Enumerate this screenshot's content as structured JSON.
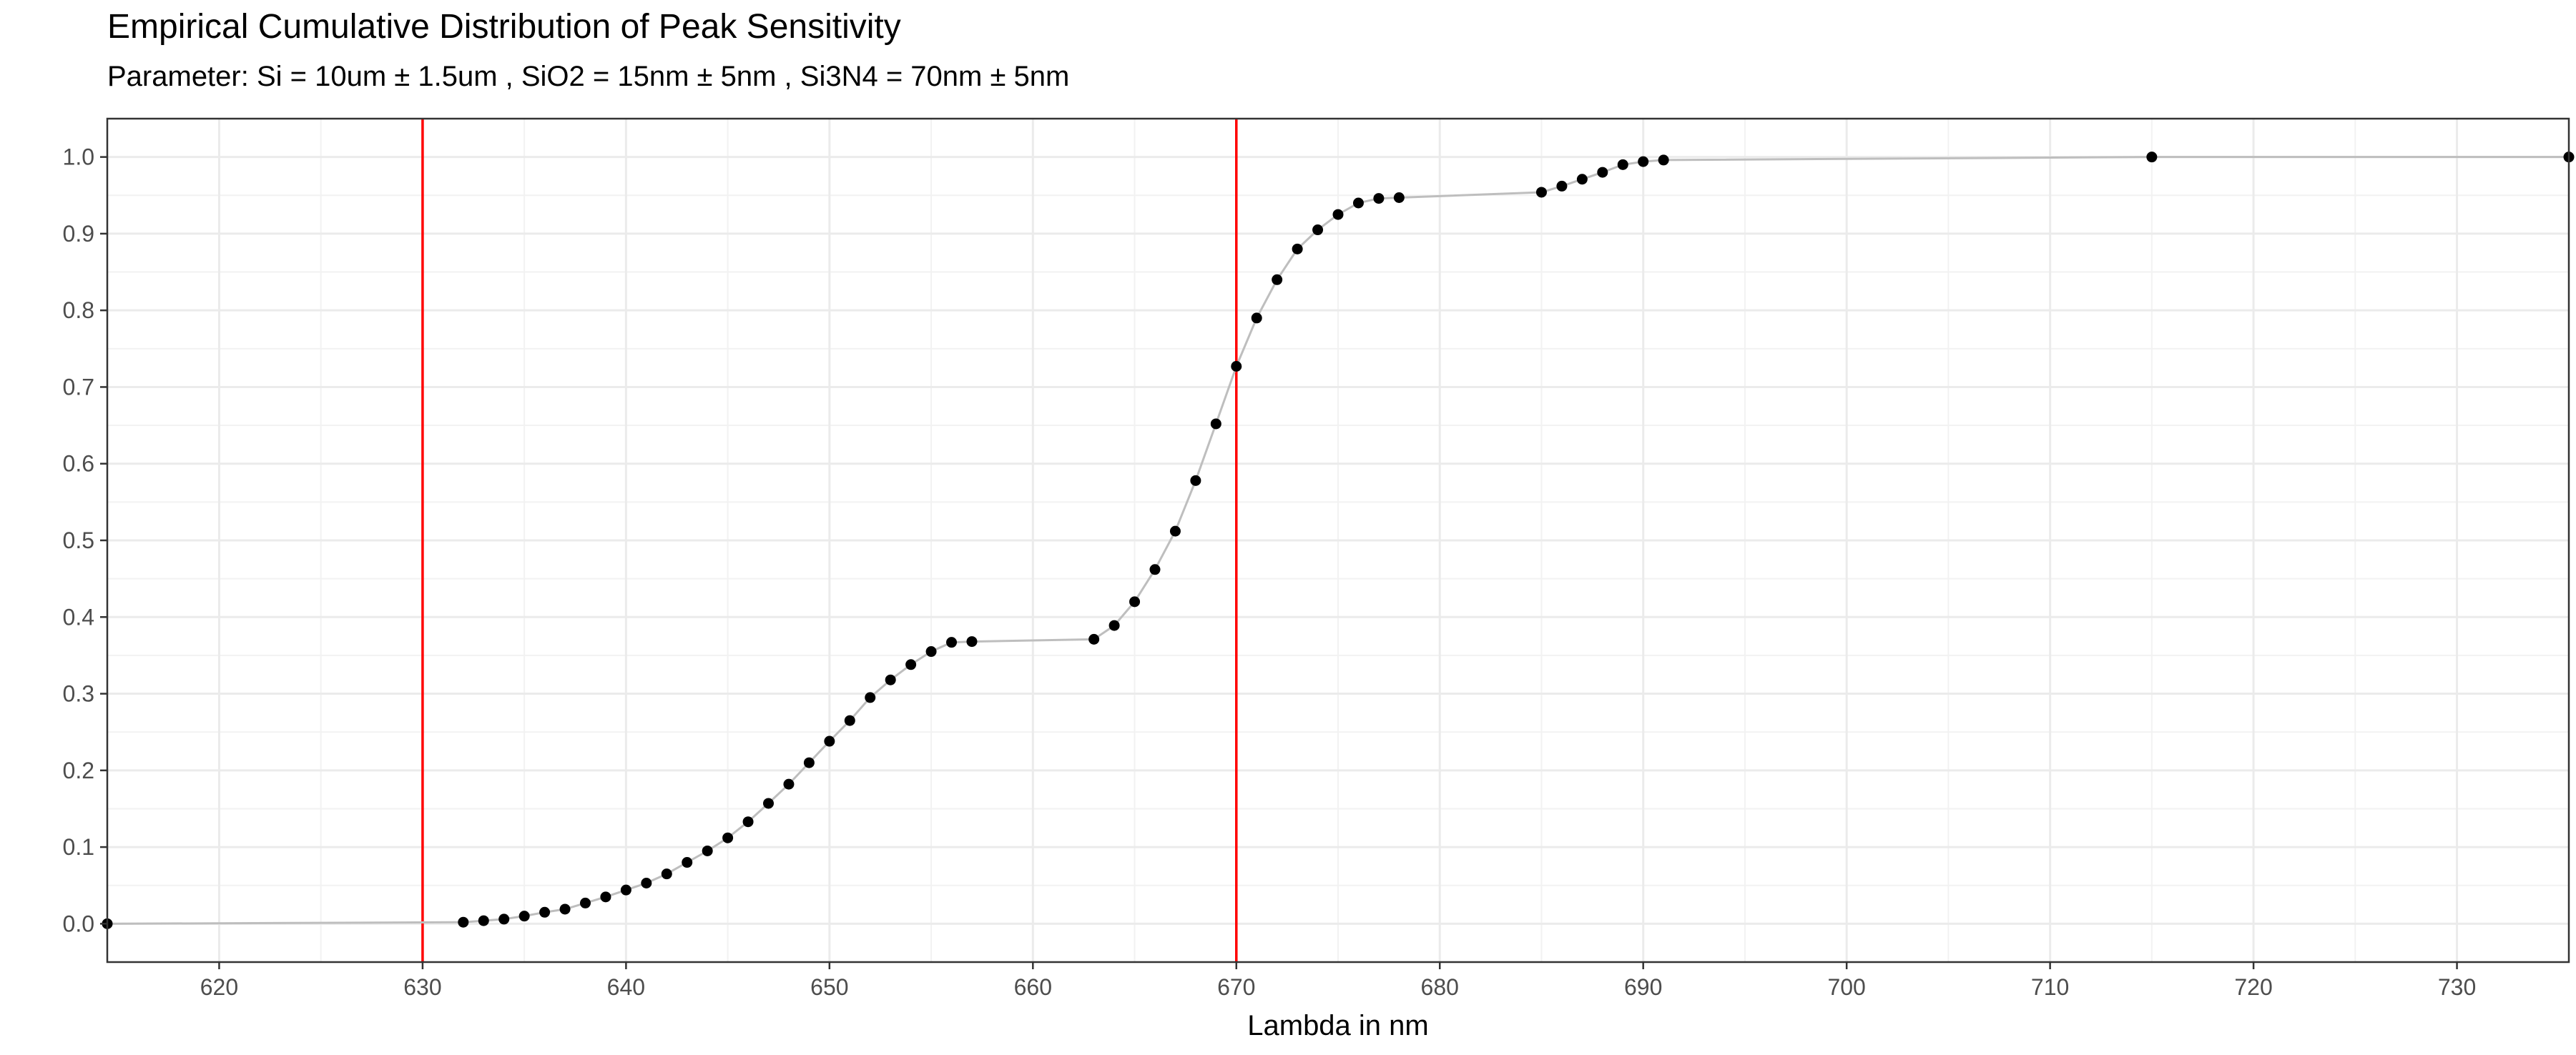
{
  "chart_data": {
    "type": "scatter",
    "title": "Empirical Cumulative Distribution of Peak Sensitivity",
    "subtitle": "Parameter: Si =  10um ± 1.5um ,  SiO2 =  15nm ± 5nm ,  Si3N4 =  70nm ± 5nm",
    "xlabel": "Lambda in nm",
    "ylabel": "",
    "xlim": [
      614.5,
      735.5
    ],
    "ylim": [
      -0.05,
      1.05
    ],
    "x_ticks": [
      620,
      630,
      640,
      650,
      660,
      670,
      680,
      690,
      700,
      710,
      720,
      730
    ],
    "y_ticks": [
      0.0,
      0.1,
      0.2,
      0.3,
      0.4,
      0.5,
      0.6,
      0.7,
      0.8,
      0.9,
      1.0
    ],
    "x_tick_labels": [
      "620",
      "630",
      "640",
      "650",
      "660",
      "670",
      "680",
      "690",
      "700",
      "710",
      "720",
      "730"
    ],
    "y_tick_labels": [
      "0.0",
      "0.1",
      "0.2",
      "0.3",
      "0.4",
      "0.5",
      "0.6",
      "0.7",
      "0.8",
      "0.9",
      "1.0"
    ],
    "grid": true,
    "vlines": [
      {
        "x": 630,
        "color": "#ff0000"
      },
      {
        "x": 670,
        "color": "#ff0000"
      }
    ],
    "line_color": "#bebebe",
    "point_color": "#000000",
    "series": [
      {
        "x": [
          614.5,
          632,
          633,
          634,
          635,
          636,
          637,
          638,
          639,
          640,
          641,
          642,
          643,
          644,
          645,
          646,
          647,
          648,
          649,
          650,
          651,
          652,
          653,
          654,
          655,
          656,
          657,
          663,
          664,
          665,
          666,
          667,
          668,
          669,
          670,
          671,
          672,
          673,
          674,
          675,
          676,
          677,
          678,
          685,
          686,
          687,
          688,
          689,
          690,
          691,
          715,
          735.5
        ],
        "y": [
          0.0,
          0.002,
          0.004,
          0.006,
          0.01,
          0.015,
          0.019,
          0.027,
          0.035,
          0.044,
          0.053,
          0.065,
          0.08,
          0.095,
          0.112,
          0.133,
          0.157,
          0.182,
          0.21,
          0.238,
          0.265,
          0.295,
          0.318,
          0.338,
          0.355,
          0.367,
          0.368,
          0.371,
          0.389,
          0.42,
          0.462,
          0.512,
          0.578,
          0.652,
          0.727,
          0.79,
          0.84,
          0.88,
          0.905,
          0.925,
          0.94,
          0.946,
          0.947,
          0.954,
          0.962,
          0.971,
          0.98,
          0.99,
          0.994,
          0.996,
          1.0,
          1.0
        ]
      }
    ]
  }
}
